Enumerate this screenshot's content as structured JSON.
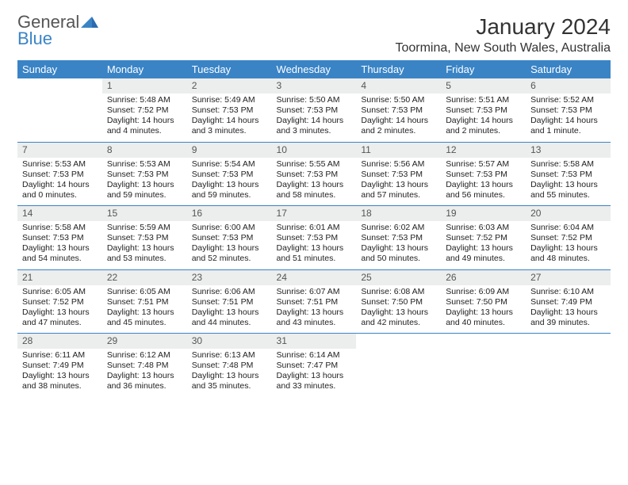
{
  "brand": {
    "line1": "General",
    "line2": "Blue"
  },
  "title": "January 2024",
  "location": "Toormina, New South Wales, Australia",
  "colors": {
    "accent": "#3a84c6",
    "daybg": "#eceded",
    "text": "#222"
  },
  "dayHeaders": [
    "Sunday",
    "Monday",
    "Tuesday",
    "Wednesday",
    "Thursday",
    "Friday",
    "Saturday"
  ],
  "weeks": [
    [
      null,
      {
        "n": "1",
        "sr": "Sunrise: 5:48 AM",
        "ss": "Sunset: 7:52 PM",
        "dl": "Daylight: 14 hours and 4 minutes."
      },
      {
        "n": "2",
        "sr": "Sunrise: 5:49 AM",
        "ss": "Sunset: 7:53 PM",
        "dl": "Daylight: 14 hours and 3 minutes."
      },
      {
        "n": "3",
        "sr": "Sunrise: 5:50 AM",
        "ss": "Sunset: 7:53 PM",
        "dl": "Daylight: 14 hours and 3 minutes."
      },
      {
        "n": "4",
        "sr": "Sunrise: 5:50 AM",
        "ss": "Sunset: 7:53 PM",
        "dl": "Daylight: 14 hours and 2 minutes."
      },
      {
        "n": "5",
        "sr": "Sunrise: 5:51 AM",
        "ss": "Sunset: 7:53 PM",
        "dl": "Daylight: 14 hours and 2 minutes."
      },
      {
        "n": "6",
        "sr": "Sunrise: 5:52 AM",
        "ss": "Sunset: 7:53 PM",
        "dl": "Daylight: 14 hours and 1 minute."
      }
    ],
    [
      {
        "n": "7",
        "sr": "Sunrise: 5:53 AM",
        "ss": "Sunset: 7:53 PM",
        "dl": "Daylight: 14 hours and 0 minutes."
      },
      {
        "n": "8",
        "sr": "Sunrise: 5:53 AM",
        "ss": "Sunset: 7:53 PM",
        "dl": "Daylight: 13 hours and 59 minutes."
      },
      {
        "n": "9",
        "sr": "Sunrise: 5:54 AM",
        "ss": "Sunset: 7:53 PM",
        "dl": "Daylight: 13 hours and 59 minutes."
      },
      {
        "n": "10",
        "sr": "Sunrise: 5:55 AM",
        "ss": "Sunset: 7:53 PM",
        "dl": "Daylight: 13 hours and 58 minutes."
      },
      {
        "n": "11",
        "sr": "Sunrise: 5:56 AM",
        "ss": "Sunset: 7:53 PM",
        "dl": "Daylight: 13 hours and 57 minutes."
      },
      {
        "n": "12",
        "sr": "Sunrise: 5:57 AM",
        "ss": "Sunset: 7:53 PM",
        "dl": "Daylight: 13 hours and 56 minutes."
      },
      {
        "n": "13",
        "sr": "Sunrise: 5:58 AM",
        "ss": "Sunset: 7:53 PM",
        "dl": "Daylight: 13 hours and 55 minutes."
      }
    ],
    [
      {
        "n": "14",
        "sr": "Sunrise: 5:58 AM",
        "ss": "Sunset: 7:53 PM",
        "dl": "Daylight: 13 hours and 54 minutes."
      },
      {
        "n": "15",
        "sr": "Sunrise: 5:59 AM",
        "ss": "Sunset: 7:53 PM",
        "dl": "Daylight: 13 hours and 53 minutes."
      },
      {
        "n": "16",
        "sr": "Sunrise: 6:00 AM",
        "ss": "Sunset: 7:53 PM",
        "dl": "Daylight: 13 hours and 52 minutes."
      },
      {
        "n": "17",
        "sr": "Sunrise: 6:01 AM",
        "ss": "Sunset: 7:53 PM",
        "dl": "Daylight: 13 hours and 51 minutes."
      },
      {
        "n": "18",
        "sr": "Sunrise: 6:02 AM",
        "ss": "Sunset: 7:53 PM",
        "dl": "Daylight: 13 hours and 50 minutes."
      },
      {
        "n": "19",
        "sr": "Sunrise: 6:03 AM",
        "ss": "Sunset: 7:52 PM",
        "dl": "Daylight: 13 hours and 49 minutes."
      },
      {
        "n": "20",
        "sr": "Sunrise: 6:04 AM",
        "ss": "Sunset: 7:52 PM",
        "dl": "Daylight: 13 hours and 48 minutes."
      }
    ],
    [
      {
        "n": "21",
        "sr": "Sunrise: 6:05 AM",
        "ss": "Sunset: 7:52 PM",
        "dl": "Daylight: 13 hours and 47 minutes."
      },
      {
        "n": "22",
        "sr": "Sunrise: 6:05 AM",
        "ss": "Sunset: 7:51 PM",
        "dl": "Daylight: 13 hours and 45 minutes."
      },
      {
        "n": "23",
        "sr": "Sunrise: 6:06 AM",
        "ss": "Sunset: 7:51 PM",
        "dl": "Daylight: 13 hours and 44 minutes."
      },
      {
        "n": "24",
        "sr": "Sunrise: 6:07 AM",
        "ss": "Sunset: 7:51 PM",
        "dl": "Daylight: 13 hours and 43 minutes."
      },
      {
        "n": "25",
        "sr": "Sunrise: 6:08 AM",
        "ss": "Sunset: 7:50 PM",
        "dl": "Daylight: 13 hours and 42 minutes."
      },
      {
        "n": "26",
        "sr": "Sunrise: 6:09 AM",
        "ss": "Sunset: 7:50 PM",
        "dl": "Daylight: 13 hours and 40 minutes."
      },
      {
        "n": "27",
        "sr": "Sunrise: 6:10 AM",
        "ss": "Sunset: 7:49 PM",
        "dl": "Daylight: 13 hours and 39 minutes."
      }
    ],
    [
      {
        "n": "28",
        "sr": "Sunrise: 6:11 AM",
        "ss": "Sunset: 7:49 PM",
        "dl": "Daylight: 13 hours and 38 minutes."
      },
      {
        "n": "29",
        "sr": "Sunrise: 6:12 AM",
        "ss": "Sunset: 7:48 PM",
        "dl": "Daylight: 13 hours and 36 minutes."
      },
      {
        "n": "30",
        "sr": "Sunrise: 6:13 AM",
        "ss": "Sunset: 7:48 PM",
        "dl": "Daylight: 13 hours and 35 minutes."
      },
      {
        "n": "31",
        "sr": "Sunrise: 6:14 AM",
        "ss": "Sunset: 7:47 PM",
        "dl": "Daylight: 13 hours and 33 minutes."
      },
      null,
      null,
      null
    ]
  ]
}
